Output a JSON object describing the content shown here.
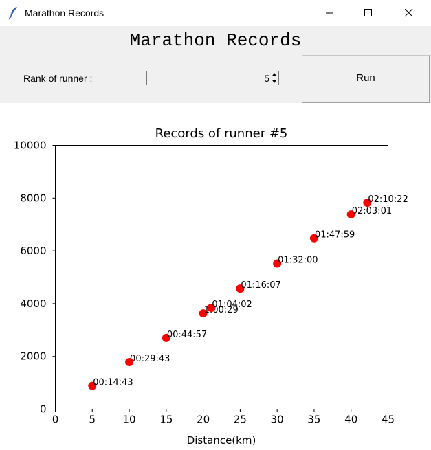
{
  "window": {
    "title": "Marathon Records"
  },
  "controls": {
    "heading": "Marathon Records",
    "rank_label": "Rank of runner :",
    "rank_value": "5",
    "run_label": "Run"
  },
  "chart_data": {
    "type": "scatter",
    "title": "Records of runner #5",
    "xlabel": "Distance(km)",
    "ylabel": "",
    "xlim": [
      0,
      45
    ],
    "ylim": [
      0,
      10000
    ],
    "xticks": [
      0,
      5,
      10,
      15,
      20,
      25,
      30,
      35,
      40,
      45
    ],
    "yticks": [
      0,
      2000,
      4000,
      6000,
      8000,
      10000
    ],
    "grid": false,
    "marker_color": "#ff0000",
    "points": [
      {
        "x": 5,
        "y": 883,
        "label": "00:14:43"
      },
      {
        "x": 10,
        "y": 1783,
        "label": "00:29:43"
      },
      {
        "x": 15,
        "y": 2697,
        "label": "00:44:57"
      },
      {
        "x": 20,
        "y": 3629,
        "label": "1:00:29"
      },
      {
        "x": 21.0975,
        "y": 3842,
        "label": "01:04:02"
      },
      {
        "x": 25,
        "y": 4567,
        "label": "01:16:07"
      },
      {
        "x": 30,
        "y": 5520,
        "label": "01:32:00"
      },
      {
        "x": 35,
        "y": 6479,
        "label": "01:47:59"
      },
      {
        "x": 40,
        "y": 7381,
        "label": "02:03:01"
      },
      {
        "x": 42.195,
        "y": 7822,
        "label": "02:10:22"
      }
    ]
  }
}
